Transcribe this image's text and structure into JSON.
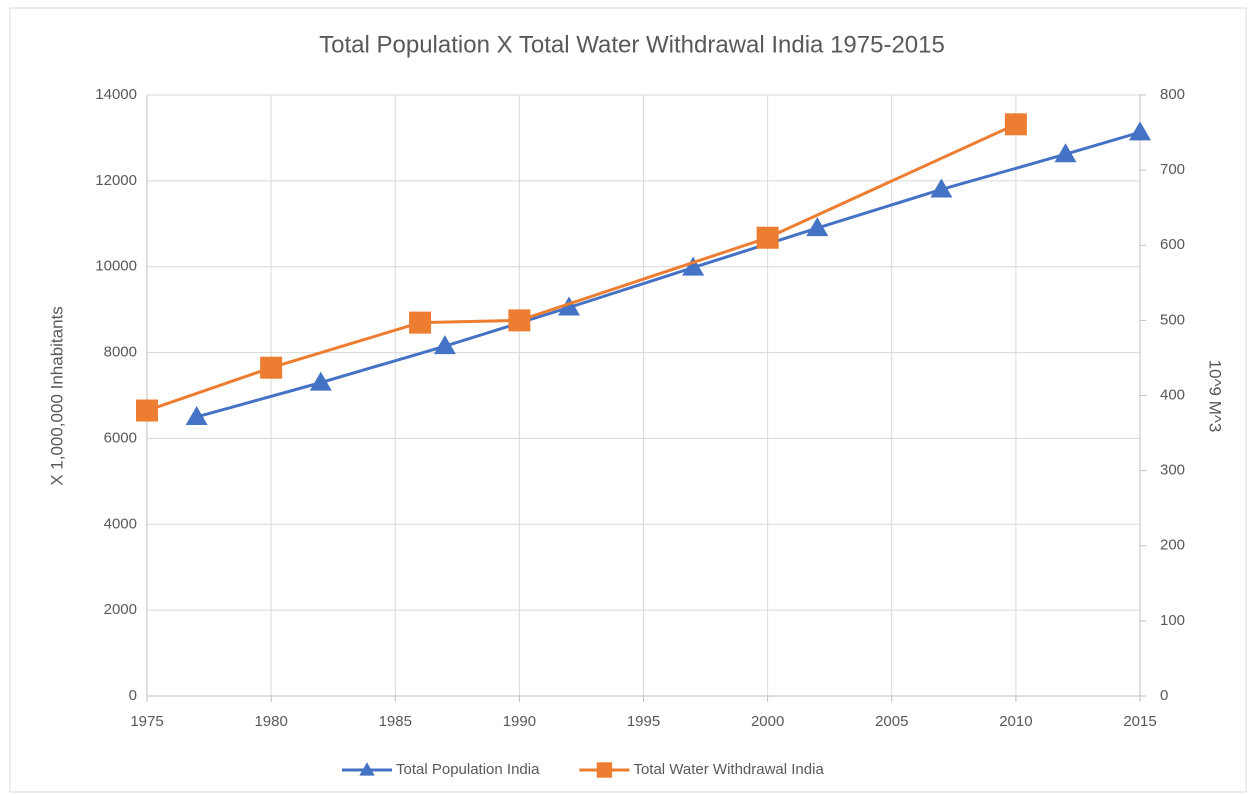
{
  "chart_data": {
    "type": "line",
    "title": "Total Population X Total Water Withdrawal India 1975-2015",
    "y_label": "X 1,000,000 Inhabitants",
    "y2_label": "10^9 M^3",
    "xlim": [
      1975,
      2015
    ],
    "xticks": [
      1975,
      1980,
      1985,
      1990,
      1995,
      2000,
      2005,
      2010,
      2015
    ],
    "ylim": [
      0,
      14000
    ],
    "yticks": [
      0,
      2000,
      4000,
      6000,
      8000,
      10000,
      12000,
      14000
    ],
    "y2lim": [
      0,
      800
    ],
    "y2ticks": [
      0,
      100,
      200,
      300,
      400,
      500,
      600,
      700,
      800
    ],
    "grid": true,
    "legend": "bottom",
    "series": [
      {
        "name": "Total Population India",
        "color": "#4472c4",
        "marker": "triangle",
        "x": [
          1977,
          1982,
          1987,
          1992,
          1997,
          2002,
          2007,
          2012,
          2015
        ],
        "values": [
          6500,
          7300,
          8150,
          9050,
          9980,
          10900,
          11800,
          12620,
          13130
        ]
      },
      {
        "name": "Total Water Withdrawal India",
        "color": "#ed7d31",
        "marker": "square",
        "axis": "y2",
        "x": [
          1975,
          1980,
          1986,
          1990,
          2000,
          2010
        ],
        "values": [
          380,
          437,
          497,
          500,
          610,
          761
        ]
      }
    ]
  }
}
